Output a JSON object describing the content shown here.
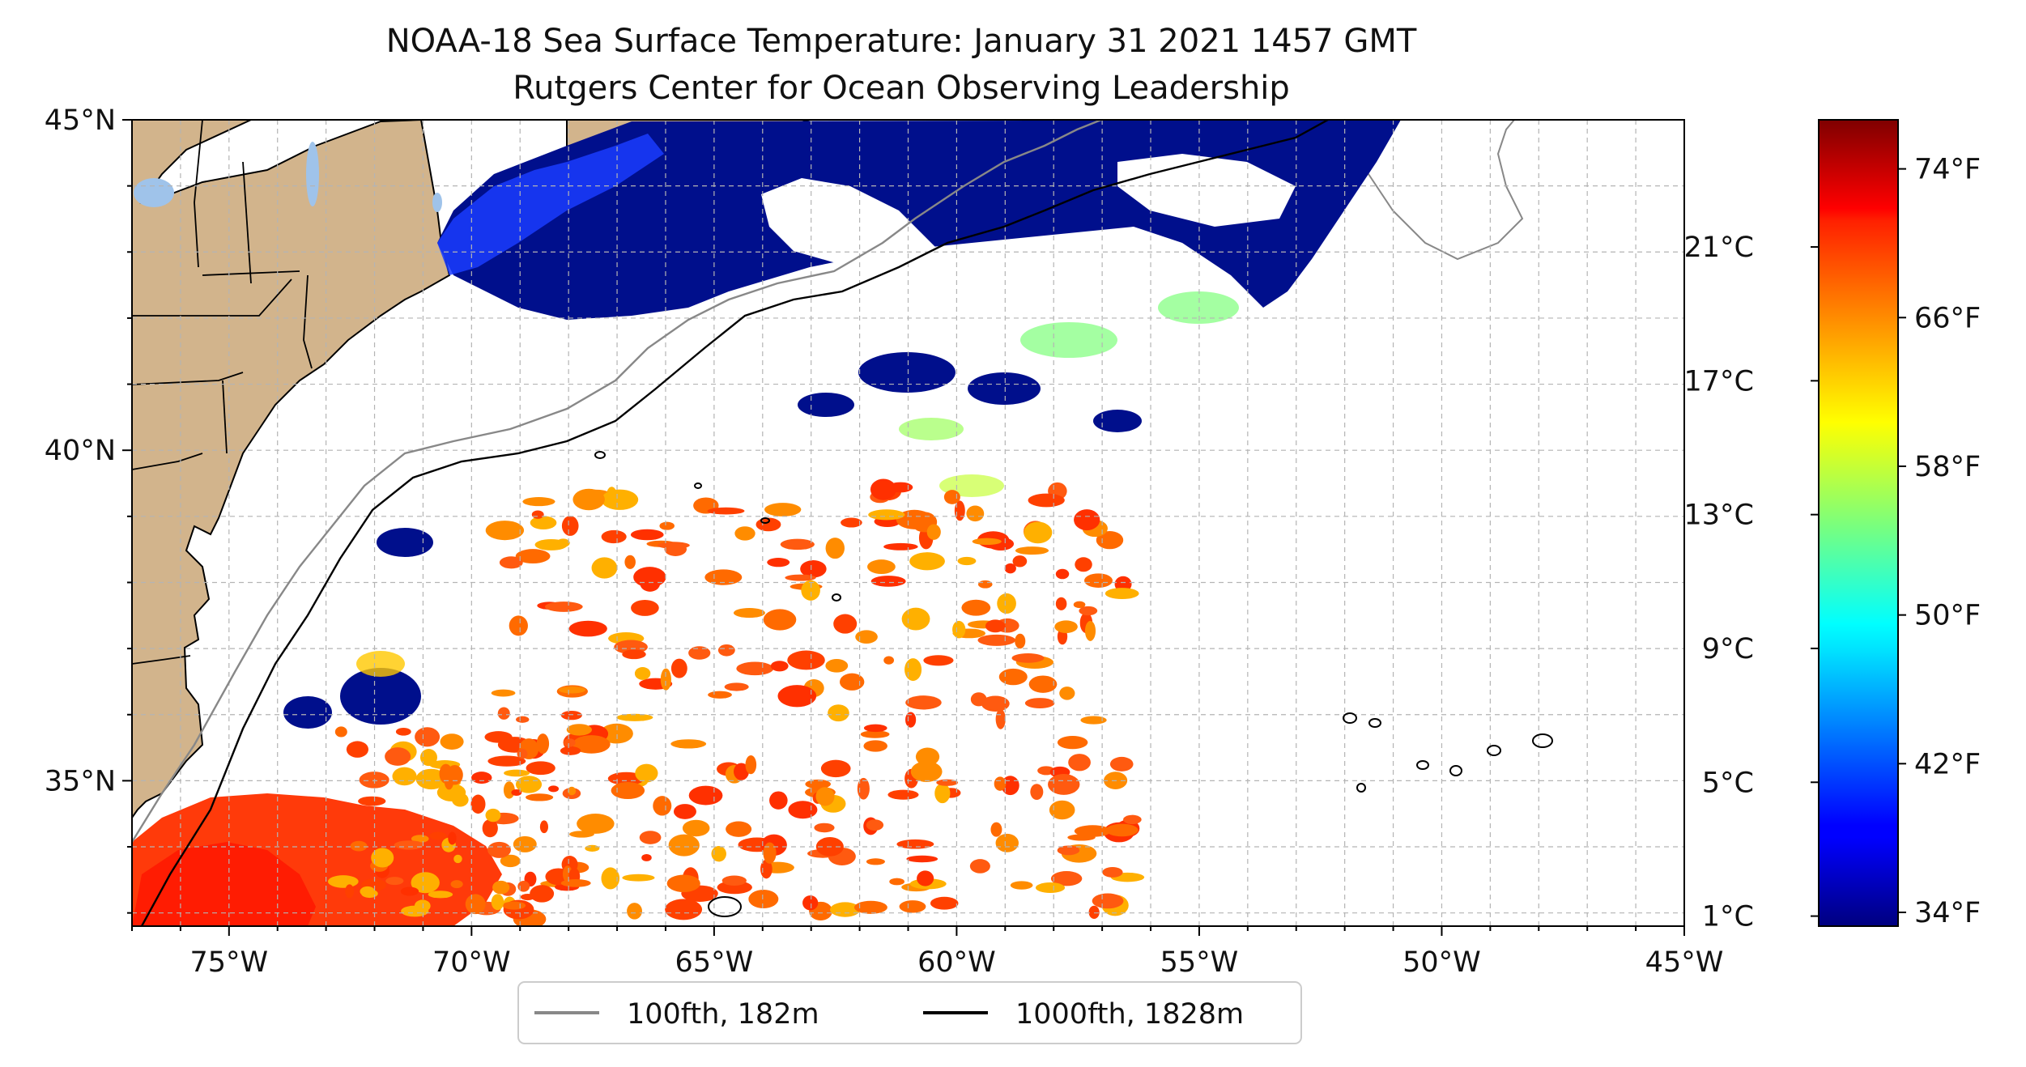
{
  "title_line1": "NOAA-18 Sea Surface Temperature: January 31 2021 1457 GMT",
  "title_line2": "Rutgers Center for Ocean Observing Leadership",
  "map": {
    "lon_range": [
      -77,
      -45
    ],
    "lat_range": [
      32.8,
      45
    ],
    "x_ticks": [
      "75°W",
      "70°W",
      "65°W",
      "60°W",
      "55°W",
      "50°W",
      "45°W"
    ],
    "y_ticks": [
      "45°N",
      "40°N",
      "35°N"
    ],
    "grid": true,
    "land_color": "#d2b48c",
    "lake_color": "#9fc3ea",
    "sst_warm_color": "#ff5a10",
    "sst_cold_color": "#000f8c"
  },
  "legend": {
    "placement": "bottom-center",
    "items": [
      {
        "label": "100fth, 182m",
        "color": "#888888"
      },
      {
        "label": "1000fth, 1828m",
        "color": "#000000"
      }
    ]
  },
  "colorbar": {
    "colormap": "jet",
    "celsius_labels": [
      "21°C",
      "17°C",
      "13°C",
      "9°C",
      "5°C",
      "1°C"
    ],
    "fahrenheit_labels": [
      "74°F",
      "66°F",
      "58°F",
      "50°F",
      "42°F",
      "34°F"
    ]
  }
}
